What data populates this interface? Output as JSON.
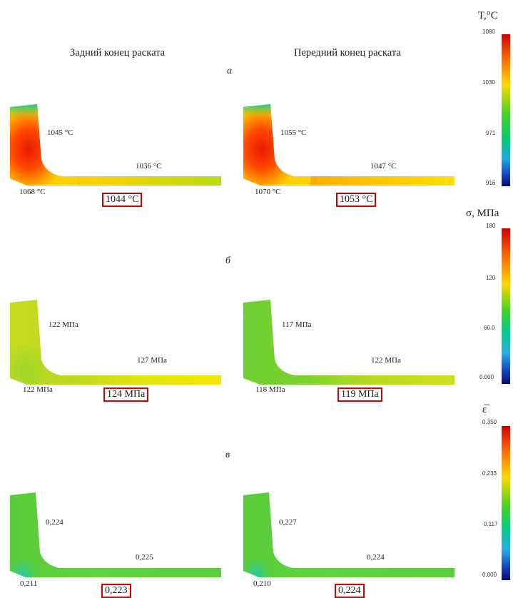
{
  "columns": {
    "left_title": "Задний конец раската",
    "right_title": "Передний конец раската"
  },
  "panels": [
    {
      "letter": "а",
      "left": {
        "top": "1045 °С",
        "right": "1036 °С",
        "corner": "1068 °С",
        "boxed": "1044 °С"
      },
      "right": {
        "top": "1055 °С",
        "right": "1047 °С",
        "corner": "1070 °С",
        "boxed": "1053 °С"
      }
    },
    {
      "letter": "б",
      "left": {
        "top": "122 МПа",
        "right": "127 МПа",
        "corner": "122 МПа",
        "boxed": "124 МПа"
      },
      "right": {
        "top": "117 МПа",
        "right": "122 МПа",
        "corner": "118 МПа",
        "boxed": "119 МПа"
      }
    },
    {
      "letter": "в",
      "left": {
        "top": "0,224",
        "right": "0,225",
        "corner": "0,211",
        "boxed": "0,223"
      },
      "right": {
        "top": "0,227",
        "right": "0,224",
        "corner": "0,210",
        "boxed": "0,224"
      }
    }
  ],
  "colorbars": [
    {
      "title": "T,°С",
      "ticks": [
        "1080",
        "1030",
        "971",
        "916"
      ]
    },
    {
      "title": "σ, МПа",
      "ticks": [
        "180",
        "120",
        "60.0",
        "0.000"
      ]
    },
    {
      "title": "ε̅",
      "ticks": [
        "0.350",
        "0.233",
        "0.117",
        "0.000"
      ]
    }
  ],
  "colors": {
    "highlight_box": "#d40000"
  }
}
